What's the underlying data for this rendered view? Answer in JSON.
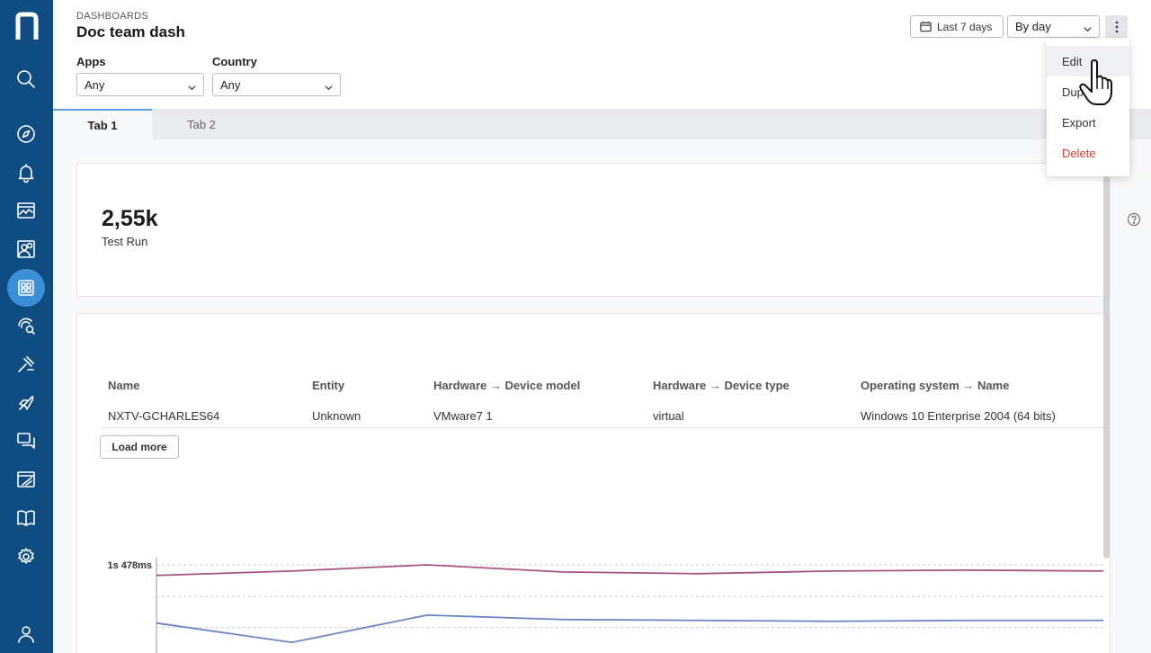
{
  "breadcrumb": "DASHBOARDS",
  "title": "Doc team dash",
  "filters": [
    {
      "label": "Apps",
      "value": "Any"
    },
    {
      "label": "Country",
      "value": "Any"
    }
  ],
  "toolbar": {
    "date_range": "Last 7 days",
    "granularity": "By day"
  },
  "menu": {
    "items": [
      "Edit",
      "Duplicate",
      "Export",
      "Delete"
    ]
  },
  "tabs": [
    "Tab 1",
    "Tab 2"
  ],
  "kpi": {
    "value": "2,55k",
    "label": "Test Run"
  },
  "table": {
    "headers": [
      "Name",
      "Entity",
      "Hardware → Device model",
      "Hardware → Device type",
      "Operating system → Name"
    ],
    "rows": [
      [
        "NXTV-GCHARLES64",
        "Unknown",
        "VMware7 1",
        "virtual",
        "Windows 10 Enterprise 2004 (64 bits)"
      ]
    ],
    "load_more": "Load more"
  },
  "colors": {
    "sidebar": "#0f4c81",
    "active_nav": "#3b8fd8",
    "danger": "#d93a2f",
    "series_1": "#a7547f",
    "series_2": "#6a86c4"
  },
  "chart_data": {
    "type": "line",
    "ytick_labels": [
      "1s 478ms"
    ],
    "x_points": 8,
    "series": [
      {
        "color": "#a7547f",
        "values": [
          0.88,
          0.93,
          1.0,
          0.92,
          0.9,
          0.93,
          0.94,
          0.93
        ]
      },
      {
        "color": "#6a86c4",
        "values": [
          0.34,
          0.12,
          0.43,
          0.38,
          0.37,
          0.36,
          0.37,
          0.37
        ]
      }
    ]
  }
}
